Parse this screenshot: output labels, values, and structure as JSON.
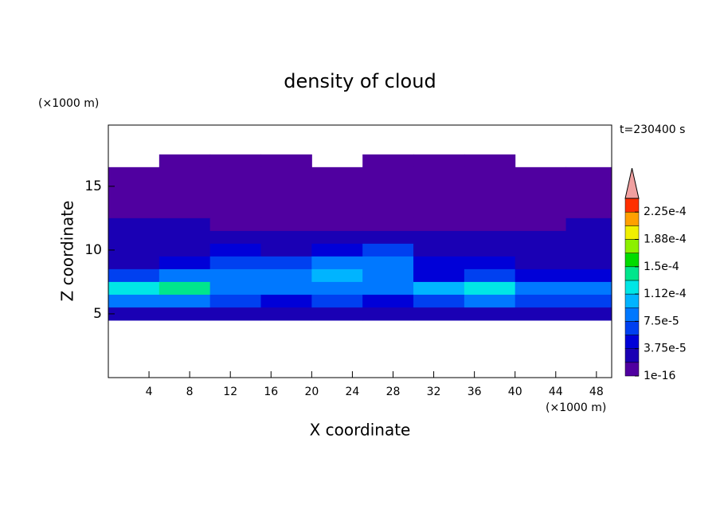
{
  "chart_data": {
    "type": "contour",
    "title": "density of cloud",
    "xlabel": "X coordinate",
    "ylabel": "Z coordinate",
    "x_unit": "(×1000 m)",
    "y_unit": "(×1000 m)",
    "annotation": "t=230400 s",
    "xlim": [
      0,
      49.5
    ],
    "ylim": [
      0,
      19.8
    ],
    "xticks": [
      4,
      8,
      12,
      16,
      20,
      24,
      28,
      32,
      36,
      40,
      44,
      48
    ],
    "yticks": [
      5,
      10,
      15
    ],
    "x": [
      2.5,
      7.5,
      12.5,
      17.5,
      22.5,
      27.5,
      32.5,
      37.5,
      42.5,
      47.5
    ],
    "y": [
      17,
      16,
      15,
      14,
      13,
      12,
      11,
      10,
      9,
      8,
      7,
      6,
      5
    ],
    "z": [
      [
        null,
        1e-05,
        1e-05,
        1e-05,
        null,
        1e-05,
        1e-05,
        1e-05,
        null,
        null
      ],
      [
        1e-05,
        1e-05,
        1e-05,
        1e-05,
        1e-05,
        1e-05,
        1e-05,
        1e-05,
        1e-05,
        1e-05
      ],
      [
        1e-05,
        1e-05,
        1e-05,
        1e-05,
        1e-05,
        1e-05,
        1e-05,
        1e-05,
        1e-05,
        1e-05
      ],
      [
        1e-05,
        1e-05,
        1e-05,
        1e-05,
        1e-05,
        1e-05,
        1e-05,
        1e-05,
        1e-05,
        1e-05
      ],
      [
        1e-05,
        1e-05,
        1e-05,
        1e-05,
        1e-05,
        1e-05,
        1e-05,
        1e-05,
        1e-05,
        1e-05
      ],
      [
        2e-05,
        2e-05,
        1e-05,
        1e-05,
        1e-05,
        1e-05,
        1e-05,
        1e-05,
        1e-05,
        2e-05
      ],
      [
        2e-05,
        2e-05,
        2e-05,
        2e-05,
        2e-05,
        2e-05,
        2e-05,
        2e-05,
        2e-05,
        2e-05
      ],
      [
        2e-05,
        3e-05,
        4e-05,
        3e-05,
        4e-05,
        6e-05,
        2e-05,
        2e-05,
        2e-05,
        2e-05
      ],
      [
        3e-05,
        5e-05,
        7e-05,
        6e-05,
        8e-05,
        9e-05,
        4e-05,
        4e-05,
        3e-05,
        3e-05
      ],
      [
        6e-05,
        8e-05,
        9e-05,
        8e-05,
        0.0001,
        9e-05,
        5e-05,
        6e-05,
        5e-05,
        5e-05
      ],
      [
        0.00013,
        0.00014,
        9e-05,
        8e-05,
        9e-05,
        8e-05,
        0.0001,
        0.00013,
        9e-05,
        8e-05
      ],
      [
        8e-05,
        9e-05,
        6e-05,
        5e-05,
        6e-05,
        4e-05,
        7e-05,
        8e-05,
        6e-05,
        7e-05
      ],
      [
        2e-05,
        2e-05,
        3e-05,
        2e-05,
        2e-05,
        2e-05,
        2e-05,
        2e-05,
        2e-05,
        2e-05
      ]
    ],
    "colorbar": {
      "levels": [
        1e-16,
        1.875e-05,
        3.75e-05,
        5.625e-05,
        7.5e-05,
        9.375e-05,
        0.0001125,
        0.00013125,
        0.00015,
        0.00016875,
        0.0001875,
        0.00020625,
        0.000225,
        0.00024375
      ],
      "colors": [
        "#5000a0",
        "#1a00b4",
        "#0000d8",
        "#0040f0",
        "#0078ff",
        "#00b4ff",
        "#00e6e6",
        "#00e68c",
        "#00dc00",
        "#8cf000",
        "#f0f000",
        "#ffa000",
        "#ff3000"
      ],
      "over_color": "#f0a0a0",
      "ticks": [
        1e-16,
        {
          "value": 3.75e-05,
          "label": "3.75e-5"
        },
        {
          "value": 7.5e-05,
          "label": "7.5e-5"
        },
        {
          "value": 0.0001125,
          "label": "1.12e-4"
        },
        {
          "value": 0.00015,
          "label": "1.5e-4"
        },
        {
          "value": 0.0001875,
          "label": "1.88e-4"
        },
        {
          "value": 0.000225,
          "label": "2.25e-4"
        }
      ]
    }
  }
}
